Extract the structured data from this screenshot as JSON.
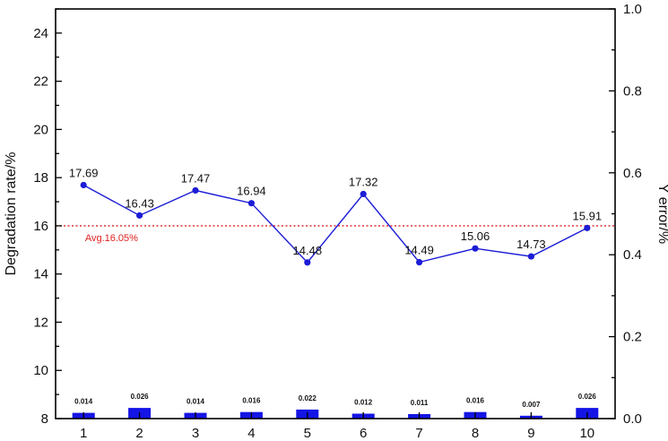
{
  "chart_data": {
    "type": "line",
    "x": [
      1,
      2,
      3,
      4,
      5,
      6,
      7,
      8,
      9,
      10
    ],
    "xlim": [
      0.5,
      10.5
    ],
    "ylabel": "Degradation rate/%",
    "y2label": "Y error/%",
    "ylim": [
      8,
      25
    ],
    "y2lim": [
      0,
      1
    ],
    "yticks": [
      8,
      10,
      12,
      14,
      16,
      18,
      20,
      22,
      24
    ],
    "y2ticks": [
      "0.0",
      "0.2",
      "0.4",
      "0.6",
      "0.8",
      "1.0"
    ],
    "series": [
      {
        "axis": "left",
        "type": "line",
        "values": [
          17.69,
          16.43,
          17.47,
          16.94,
          14.48,
          17.32,
          14.49,
          15.06,
          14.73,
          15.91
        ],
        "labels": [
          "17.69",
          "16.43",
          "17.47",
          "16.94",
          "14.48",
          "17.32",
          "14.49",
          "15.06",
          "14.73",
          "15.91"
        ],
        "color": "#1c1cd6"
      },
      {
        "axis": "right",
        "type": "bar",
        "values": [
          0.014,
          0.026,
          0.014,
          0.016,
          0.022,
          0.012,
          0.011,
          0.016,
          0.007,
          0.026
        ],
        "labels": [
          "0.014",
          "0.026",
          "0.014",
          "0.016",
          "0.022",
          "0.012",
          "0.011",
          "0.016",
          "0.007",
          "0.026"
        ],
        "color": "#1414e6"
      }
    ],
    "reference_line": {
      "value": 16.0,
      "label": "Avg.16.05%",
      "color": "#e02020",
      "style": "dotted"
    },
    "grid": false,
    "legend": "none"
  }
}
